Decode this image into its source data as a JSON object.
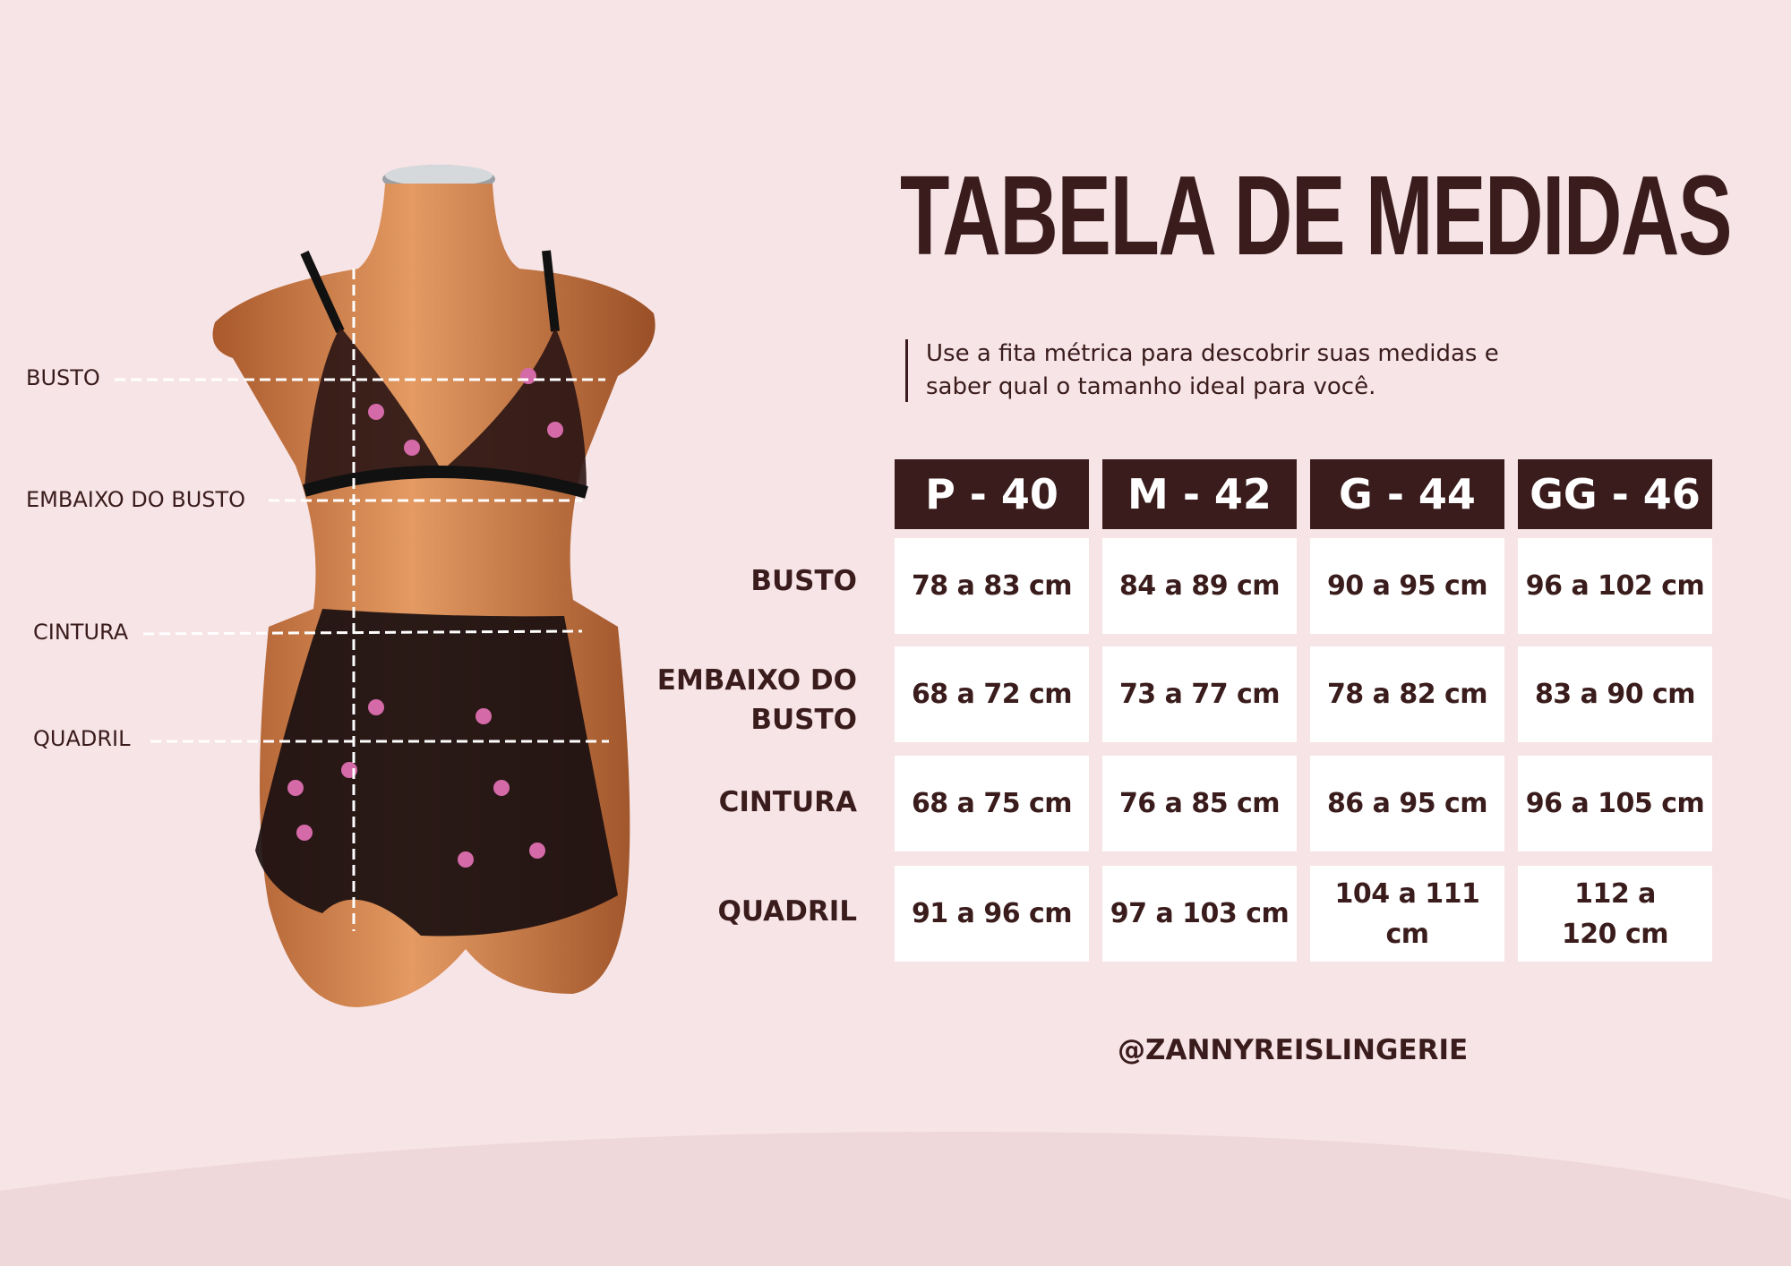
{
  "colors": {
    "background": "#f7e4e6",
    "dark_brown": "#3a1c1c",
    "cell": "#ffffff"
  },
  "title": "TABELA DE MEDIDAS",
  "subtitle_lines": [
    "Use a fita métrica para descobrir suas medidas e",
    "saber qual o tamanho ideal para você."
  ],
  "mannequin_labels": [
    "BUSTO",
    "EMBAIXO DO BUSTO",
    "CINTURA",
    "QUADRIL"
  ],
  "table": {
    "headers": [
      "P - 40",
      "M - 42",
      "G - 44",
      "GG - 46"
    ],
    "rows": [
      {
        "label": "BUSTO",
        "values": [
          "78 a 83 cm",
          "84 a 89 cm",
          "90 a 95 cm",
          "96 a 102 cm"
        ]
      },
      {
        "label": "EMBAIXO DO BUSTO",
        "values": [
          "68 a 72 cm",
          "73 a 77 cm",
          "78 a 82 cm",
          "83 a 90 cm"
        ]
      },
      {
        "label": "CINTURA",
        "values": [
          "68 a 75 cm",
          "76 a 85 cm",
          "86 a 95 cm",
          "96 a 105 cm"
        ]
      },
      {
        "label": "QUADRIL",
        "values": [
          "91 a 96 cm",
          "97 a 103 cm",
          "104 a 111 cm",
          "112 a 120 cm"
        ]
      }
    ]
  },
  "handle": "@ZANNYREISLINGERIE"
}
